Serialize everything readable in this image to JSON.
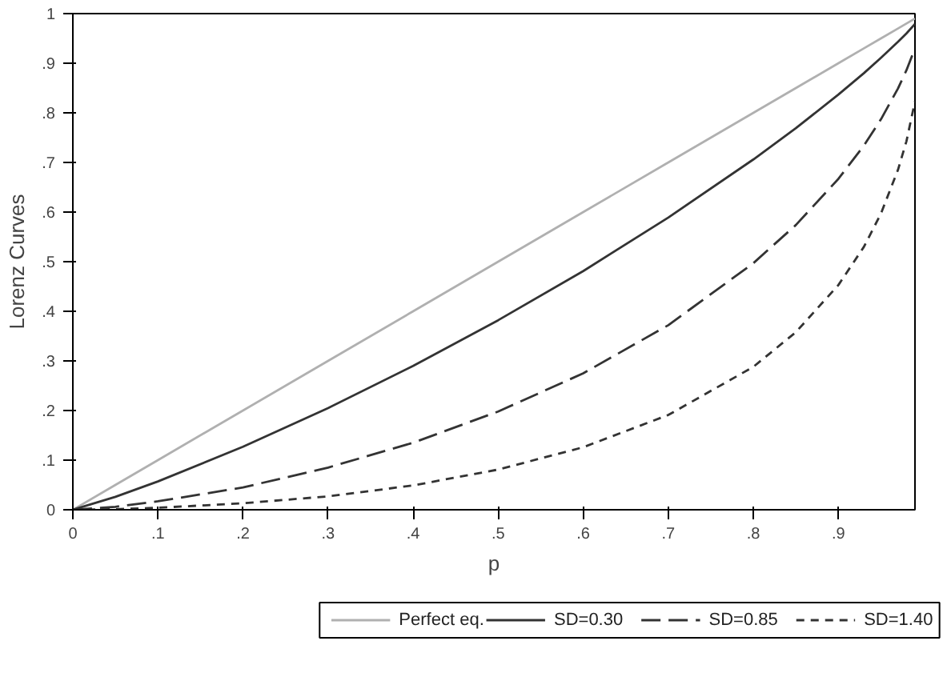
{
  "chart_data": {
    "type": "line",
    "xlabel": "p",
    "ylabel": "Lorenz Curves",
    "x": [
      0,
      0.05,
      0.1,
      0.2,
      0.3,
      0.4,
      0.5,
      0.6,
      0.7,
      0.8,
      0.85,
      0.9,
      0.93,
      0.95,
      0.97,
      0.98,
      0.99
    ],
    "series": [
      {
        "name": "Perfect eq.",
        "color": "#b0b0b0",
        "line_style": "solid",
        "values": [
          0,
          0.05,
          0.1,
          0.2,
          0.3,
          0.4,
          0.5,
          0.6,
          0.7,
          0.8,
          0.85,
          0.9,
          0.93,
          0.95,
          0.97,
          0.98,
          0.99
        ]
      },
      {
        "name": "SD=0.30",
        "color": "#333333",
        "line_style": "solid",
        "values": [
          0,
          0.026,
          0.057,
          0.127,
          0.205,
          0.29,
          0.382,
          0.481,
          0.589,
          0.706,
          0.769,
          0.837,
          0.88,
          0.911,
          0.943,
          0.96,
          0.979
        ]
      },
      {
        "name": "SD=0.85",
        "color": "#333333",
        "line_style": "dashed",
        "values": [
          0,
          0.006,
          0.017,
          0.045,
          0.085,
          0.135,
          0.198,
          0.275,
          0.372,
          0.497,
          0.574,
          0.667,
          0.734,
          0.787,
          0.849,
          0.886,
          0.93
        ]
      },
      {
        "name": "SD=1.40",
        "color": "#333333",
        "line_style": "dotted",
        "values": [
          0,
          0.001,
          0.004,
          0.013,
          0.027,
          0.049,
          0.081,
          0.126,
          0.191,
          0.288,
          0.358,
          0.453,
          0.53,
          0.597,
          0.685,
          0.743,
          0.823
        ]
      }
    ],
    "xlim": [
      0,
      0.99
    ],
    "ylim": [
      0,
      1
    ],
    "xticks": [
      0,
      {
        "value": 0.1,
        "label": ".1"
      },
      {
        "value": 0.2,
        "label": ".2"
      },
      {
        "value": 0.3,
        "label": ".3"
      },
      {
        "value": 0.4,
        "label": ".4"
      },
      {
        "value": 0.5,
        "label": ".5"
      },
      {
        "value": 0.6,
        "label": ".6"
      },
      {
        "value": 0.7,
        "label": ".7"
      },
      {
        "value": 0.8,
        "label": ".8"
      },
      {
        "value": 0.9,
        "label": ".9"
      }
    ],
    "yticks": [
      0,
      {
        "value": 0.1,
        "label": ".1"
      },
      {
        "value": 0.2,
        "label": ".2"
      },
      {
        "value": 0.3,
        "label": ".3"
      },
      {
        "value": 0.4,
        "label": ".4"
      },
      {
        "value": 0.5,
        "label": ".5"
      },
      {
        "value": 0.6,
        "label": ".6"
      },
      {
        "value": 0.7,
        "label": ".7"
      },
      {
        "value": 0.8,
        "label": ".8"
      },
      {
        "value": 0.9,
        "label": ".9"
      },
      1
    ],
    "grid": false,
    "legend": "bottom"
  }
}
